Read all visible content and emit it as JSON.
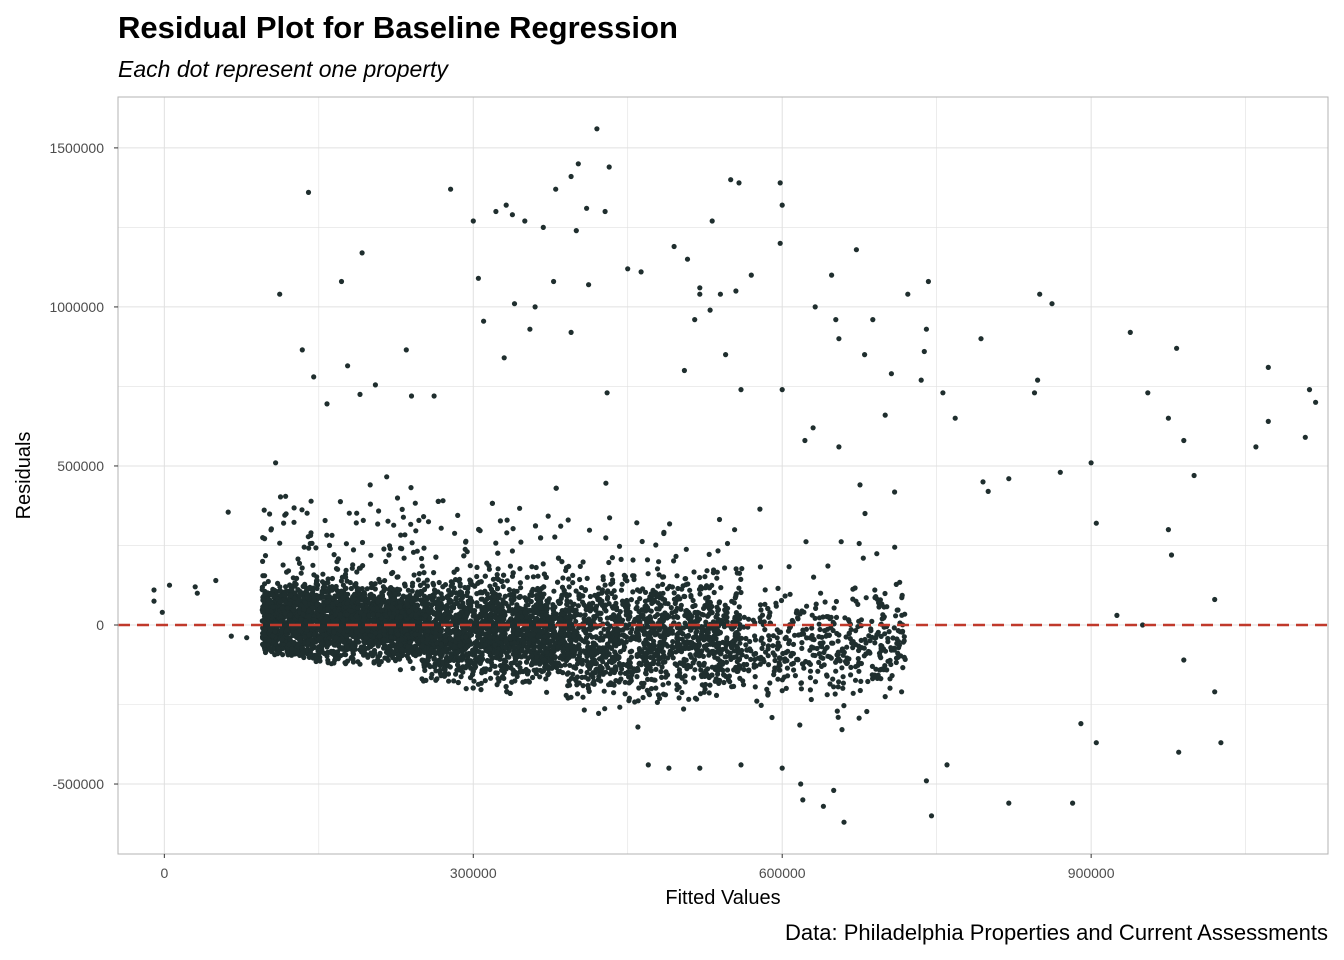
{
  "chart_data": {
    "type": "scatter",
    "title": "Residual Plot for Baseline Regression",
    "subtitle": "Each dot represent one property",
    "caption": "Data: Philadelphia Properties and Current Assessments",
    "xlabel": "Fitted Values",
    "ylabel": "Residuals",
    "xlim": [
      -45000,
      1130000
    ],
    "ylim": [
      -720000,
      1660000
    ],
    "xticks": [
      0,
      300000,
      600000,
      900000
    ],
    "yticks": [
      -500000,
      0,
      500000,
      1000000,
      1500000
    ],
    "reference_line": {
      "y": 0,
      "style": "dashed",
      "color": "#c0392b"
    },
    "point_color": "#1f2e2e",
    "grid": true,
    "legend": "none",
    "clusters": [
      {
        "x_range": [
          95000,
          250000
        ],
        "y_center": 10000,
        "y_spread": 110000,
        "lower_slope": -0.55,
        "count": 2600
      },
      {
        "x_range": [
          250000,
          390000
        ],
        "y_center": -20000,
        "y_spread": 140000,
        "lower_slope": -0.6,
        "count": 2200
      },
      {
        "x_range": [
          390000,
          560000
        ],
        "y_center": -40000,
        "y_spread": 170000,
        "lower_slope": -0.65,
        "count": 1300
      },
      {
        "x_range": [
          560000,
          720000
        ],
        "y_center": -60000,
        "y_spread": 170000,
        "lower_slope": -0.7,
        "count": 450
      }
    ],
    "points": [
      [
        -10000,
        110000
      ],
      [
        -10000,
        75000
      ],
      [
        -2000,
        40000
      ],
      [
        5000,
        125000
      ],
      [
        30000,
        120000
      ],
      [
        32000,
        100000
      ],
      [
        50000,
        140000
      ],
      [
        62000,
        355000
      ],
      [
        65000,
        -35000
      ],
      [
        80000,
        -40000
      ],
      [
        108000,
        510000
      ],
      [
        112000,
        1040000
      ],
      [
        134000,
        865000
      ],
      [
        140000,
        1360000
      ],
      [
        145000,
        780000
      ],
      [
        172000,
        1080000
      ],
      [
        192000,
        1170000
      ],
      [
        178000,
        815000
      ],
      [
        158000,
        695000
      ],
      [
        190000,
        725000
      ],
      [
        235000,
        865000
      ],
      [
        205000,
        755000
      ],
      [
        240000,
        720000
      ],
      [
        262000,
        720000
      ],
      [
        278000,
        1370000
      ],
      [
        300000,
        1270000
      ],
      [
        305000,
        1090000
      ],
      [
        310000,
        955000
      ],
      [
        322000,
        1300000
      ],
      [
        332000,
        1320000
      ],
      [
        338000,
        1290000
      ],
      [
        350000,
        1270000
      ],
      [
        368000,
        1250000
      ],
      [
        380000,
        1370000
      ],
      [
        395000,
        1410000
      ],
      [
        402000,
        1450000
      ],
      [
        410000,
        1310000
      ],
      [
        420000,
        1560000
      ],
      [
        432000,
        1440000
      ],
      [
        428000,
        1300000
      ],
      [
        400000,
        1240000
      ],
      [
        378000,
        1080000
      ],
      [
        360000,
        1000000
      ],
      [
        340000,
        1010000
      ],
      [
        330000,
        840000
      ],
      [
        355000,
        930000
      ],
      [
        395000,
        920000
      ],
      [
        412000,
        1070000
      ],
      [
        430000,
        730000
      ],
      [
        450000,
        1120000
      ],
      [
        463000,
        1110000
      ],
      [
        495000,
        1190000
      ],
      [
        508000,
        1150000
      ],
      [
        520000,
        1060000
      ],
      [
        532000,
        1270000
      ],
      [
        550000,
        1400000
      ],
      [
        558000,
        1390000
      ],
      [
        598000,
        1390000
      ],
      [
        600000,
        1320000
      ],
      [
        598000,
        1200000
      ],
      [
        570000,
        1100000
      ],
      [
        555000,
        1050000
      ],
      [
        540000,
        1040000
      ],
      [
        520000,
        1040000
      ],
      [
        530000,
        990000
      ],
      [
        515000,
        960000
      ],
      [
        505000,
        800000
      ],
      [
        545000,
        850000
      ],
      [
        560000,
        740000
      ],
      [
        600000,
        740000
      ],
      [
        632000,
        1000000
      ],
      [
        648000,
        1100000
      ],
      [
        652000,
        960000
      ],
      [
        655000,
        900000
      ],
      [
        672000,
        1180000
      ],
      [
        688000,
        960000
      ],
      [
        706000,
        790000
      ],
      [
        722000,
        1040000
      ],
      [
        742000,
        1080000
      ],
      [
        740000,
        930000
      ],
      [
        738000,
        860000
      ],
      [
        735000,
        770000
      ],
      [
        756000,
        730000
      ],
      [
        768000,
        650000
      ],
      [
        793000,
        900000
      ],
      [
        680000,
        850000
      ],
      [
        700000,
        660000
      ],
      [
        655000,
        560000
      ],
      [
        630000,
        620000
      ],
      [
        622000,
        580000
      ],
      [
        850000,
        1040000
      ],
      [
        862000,
        1010000
      ],
      [
        848000,
        770000
      ],
      [
        845000,
        730000
      ],
      [
        795000,
        450000
      ],
      [
        800000,
        420000
      ],
      [
        820000,
        460000
      ],
      [
        870000,
        480000
      ],
      [
        900000,
        510000
      ],
      [
        905000,
        320000
      ],
      [
        938000,
        920000
      ],
      [
        955000,
        730000
      ],
      [
        975000,
        650000
      ],
      [
        983000,
        870000
      ],
      [
        990000,
        580000
      ],
      [
        975000,
        300000
      ],
      [
        978000,
        220000
      ],
      [
        1000000,
        470000
      ],
      [
        1060000,
        560000
      ],
      [
        1072000,
        640000
      ],
      [
        1072000,
        810000
      ],
      [
        1108000,
        590000
      ],
      [
        1112000,
        740000
      ],
      [
        1118000,
        700000
      ],
      [
        925000,
        30000
      ],
      [
        950000,
        0
      ],
      [
        990000,
        -110000
      ],
      [
        1020000,
        80000
      ],
      [
        1020000,
        -210000
      ],
      [
        1026000,
        -370000
      ],
      [
        985000,
        -400000
      ],
      [
        905000,
        -370000
      ],
      [
        890000,
        -310000
      ],
      [
        882000,
        -560000
      ],
      [
        820000,
        -560000
      ],
      [
        745000,
        -600000
      ],
      [
        740000,
        -490000
      ],
      [
        760000,
        -440000
      ],
      [
        660000,
        -620000
      ],
      [
        650000,
        -520000
      ],
      [
        640000,
        -570000
      ],
      [
        620000,
        -550000
      ],
      [
        618000,
        -500000
      ],
      [
        600000,
        -450000
      ],
      [
        520000,
        -450000
      ],
      [
        490000,
        -450000
      ],
      [
        470000,
        -440000
      ],
      [
        560000,
        -440000
      ]
    ]
  }
}
